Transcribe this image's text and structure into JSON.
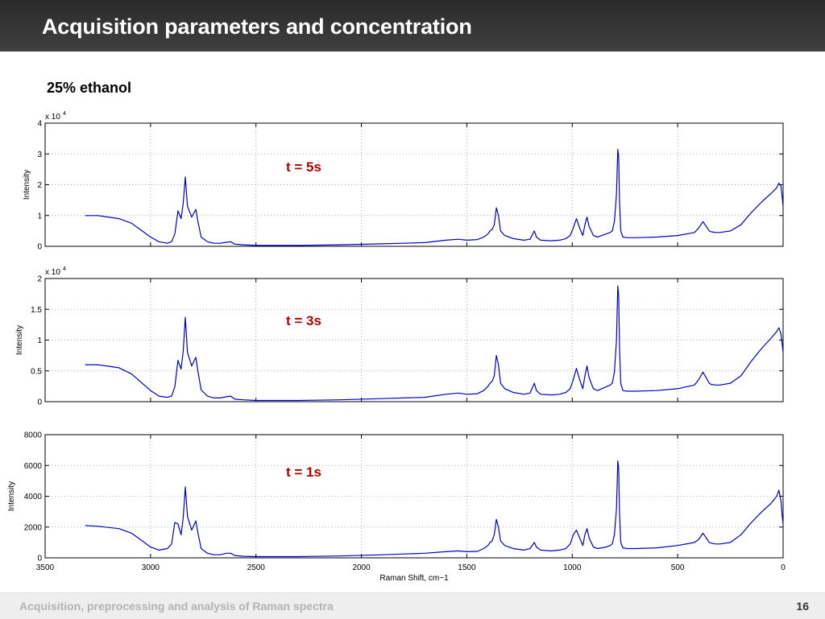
{
  "slide": {
    "title": "Acquisition parameters and concentration",
    "subtitle": "25% ethanol",
    "footer": "Acquisition, preprocessing and analysis of Raman spectra",
    "page_number": "16"
  },
  "colors": {
    "series": "#0000cc",
    "annotation": "#b00000",
    "header": "#333333"
  },
  "chart_data": [
    {
      "type": "line",
      "annotation": "t = 5s",
      "ylabel": "Intensity",
      "xlabel": "",
      "y_exponent_label": "x 10",
      "y_exponent": "4",
      "xlim": [
        3500,
        0
      ],
      "ylim": [
        0,
        40000
      ],
      "xticks": [
        3500,
        3000,
        2500,
        2000,
        1500,
        1000,
        500,
        0
      ],
      "yticks": [
        0,
        10000,
        20000,
        30000,
        40000
      ],
      "ytick_labels": [
        "0",
        "1",
        "2",
        "3",
        "4"
      ],
      "grid": true,
      "series": [
        {
          "x": [
            3310,
            3250,
            3150,
            3090,
            3050,
            3000,
            2960,
            2920,
            2900,
            2885,
            2870,
            2855,
            2845,
            2835,
            2825,
            2805,
            2785,
            2775,
            2760,
            2730,
            2700,
            2670,
            2640,
            2620,
            2600,
            2560,
            2500,
            2300,
            2100,
            1900,
            1700,
            1600,
            1540,
            1500,
            1450,
            1420,
            1400,
            1390,
            1380,
            1370,
            1360,
            1350,
            1340,
            1320,
            1300,
            1280,
            1230,
            1200,
            1180,
            1170,
            1150,
            1100,
            1060,
            1030,
            1010,
            995,
            980,
            965,
            950,
            940,
            930,
            920,
            900,
            880,
            860,
            840,
            820,
            810,
            800,
            790,
            784,
            780,
            776,
            770,
            760,
            740,
            700,
            600,
            500,
            420,
            400,
            380,
            365,
            350,
            340,
            320,
            300,
            250,
            200,
            150,
            100,
            60,
            30,
            20,
            10,
            5,
            0
          ],
          "values": [
            10000,
            10000,
            9000,
            7500,
            5500,
            3000,
            1500,
            1000,
            1500,
            4000,
            11500,
            9000,
            14000,
            22500,
            13000,
            9500,
            12000,
            8000,
            3000,
            1500,
            1000,
            1000,
            1300,
            1500,
            700,
            500,
            300,
            300,
            500,
            800,
            1200,
            2000,
            2300,
            2000,
            2200,
            3000,
            4000,
            5000,
            5500,
            7000,
            12500,
            10000,
            5000,
            3500,
            3000,
            2500,
            2000,
            2300,
            5000,
            3000,
            2000,
            1800,
            2000,
            2500,
            3500,
            6000,
            9000,
            6000,
            3500,
            7000,
            9500,
            6500,
            3500,
            3000,
            3500,
            4000,
            4500,
            5000,
            8000,
            17000,
            31500,
            29000,
            15000,
            5000,
            3000,
            2800,
            2800,
            3000,
            3500,
            4500,
            6000,
            8000,
            6500,
            5000,
            4700,
            4500,
            4500,
            5000,
            7000,
            11000,
            14500,
            17000,
            19000,
            20500,
            19500,
            16500,
            13000
          ]
        }
      ]
    },
    {
      "type": "line",
      "annotation": "t = 3s",
      "ylabel": "Intensity",
      "xlabel": "",
      "y_exponent_label": "x 10",
      "y_exponent": "4",
      "xlim": [
        3500,
        0
      ],
      "ylim": [
        0,
        20000
      ],
      "xticks": [
        3500,
        3000,
        2500,
        2000,
        1500,
        1000,
        500,
        0
      ],
      "yticks": [
        0,
        5000,
        10000,
        15000,
        20000
      ],
      "ytick_labels": [
        "0",
        "0.5",
        "1",
        "1.5",
        "2"
      ],
      "grid": true,
      "series": [
        {
          "x": [
            3310,
            3250,
            3150,
            3090,
            3050,
            3000,
            2960,
            2920,
            2900,
            2885,
            2870,
            2855,
            2845,
            2835,
            2825,
            2805,
            2785,
            2775,
            2760,
            2730,
            2700,
            2670,
            2640,
            2620,
            2600,
            2560,
            2500,
            2300,
            2100,
            1900,
            1700,
            1600,
            1540,
            1500,
            1450,
            1420,
            1400,
            1390,
            1380,
            1370,
            1360,
            1350,
            1340,
            1320,
            1300,
            1280,
            1230,
            1200,
            1180,
            1170,
            1150,
            1100,
            1060,
            1030,
            1010,
            995,
            980,
            965,
            950,
            940,
            930,
            920,
            900,
            880,
            860,
            840,
            820,
            810,
            800,
            790,
            784,
            780,
            776,
            770,
            760,
            740,
            700,
            600,
            500,
            420,
            400,
            380,
            365,
            350,
            340,
            320,
            300,
            250,
            200,
            150,
            100,
            60,
            30,
            20,
            10,
            5,
            0
          ],
          "values": [
            6000,
            6000,
            5500,
            4500,
            3300,
            1800,
            900,
            700,
            900,
            2400,
            6700,
            5300,
            8200,
            13700,
            8000,
            5800,
            7200,
            4900,
            1900,
            900,
            600,
            600,
            800,
            900,
            400,
            300,
            200,
            200,
            300,
            500,
            700,
            1200,
            1400,
            1200,
            1300,
            1800,
            2500,
            3000,
            3300,
            4200,
            7500,
            6000,
            3000,
            2100,
            1800,
            1500,
            1200,
            1400,
            3000,
            1800,
            1200,
            1100,
            1200,
            1500,
            2100,
            3600,
            5400,
            3600,
            2100,
            4200,
            5800,
            3900,
            2100,
            1800,
            2100,
            2400,
            2700,
            3000,
            4800,
            10000,
            18800,
            17200,
            9000,
            3000,
            1800,
            1700,
            1700,
            1800,
            2100,
            2700,
            3600,
            4800,
            3900,
            3000,
            2800,
            2700,
            2700,
            3000,
            4200,
            6600,
            8700,
            10200,
            11400,
            12000,
            11000,
            9500,
            8000
          ]
        }
      ]
    },
    {
      "type": "line",
      "annotation": "t = 1s",
      "ylabel": "Intensity",
      "xlabel": "Raman Shift, cm−1",
      "y_exponent_label": "",
      "y_exponent": "",
      "xlim": [
        3500,
        0
      ],
      "ylim": [
        0,
        8000
      ],
      "xticks": [
        3500,
        3000,
        2500,
        2000,
        1500,
        1000,
        500,
        0
      ],
      "yticks": [
        0,
        2000,
        4000,
        6000,
        8000
      ],
      "ytick_labels": [
        "0",
        "2000",
        "4000",
        "6000",
        "8000"
      ],
      "grid": true,
      "series": [
        {
          "x": [
            3310,
            3250,
            3150,
            3090,
            3050,
            3000,
            2960,
            2920,
            2900,
            2885,
            2870,
            2855,
            2845,
            2835,
            2825,
            2805,
            2785,
            2775,
            2760,
            2730,
            2700,
            2670,
            2640,
            2620,
            2600,
            2560,
            2500,
            2300,
            2100,
            1900,
            1700,
            1600,
            1540,
            1500,
            1450,
            1420,
            1400,
            1390,
            1380,
            1370,
            1360,
            1350,
            1340,
            1320,
            1300,
            1280,
            1230,
            1200,
            1180,
            1170,
            1150,
            1100,
            1060,
            1030,
            1010,
            995,
            980,
            965,
            950,
            940,
            930,
            920,
            900,
            880,
            860,
            840,
            820,
            810,
            800,
            790,
            784,
            780,
            776,
            770,
            760,
            740,
            700,
            600,
            500,
            420,
            400,
            380,
            365,
            350,
            340,
            320,
            300,
            250,
            200,
            150,
            100,
            60,
            30,
            20,
            10,
            5,
            0
          ],
          "values": [
            2100,
            2050,
            1900,
            1600,
            1200,
            700,
            500,
            600,
            900,
            2300,
            2200,
            1500,
            2600,
            4600,
            2700,
            1800,
            2400,
            1600,
            600,
            300,
            200,
            200,
            300,
            300,
            150,
            100,
            80,
            80,
            120,
            200,
            300,
            400,
            450,
            400,
            420,
            600,
            800,
            1000,
            1100,
            1500,
            2500,
            2000,
            1100,
            800,
            700,
            600,
            500,
            600,
            1000,
            700,
            500,
            450,
            500,
            600,
            900,
            1500,
            1800,
            1300,
            800,
            1500,
            1900,
            1300,
            700,
            600,
            650,
            700,
            800,
            900,
            1500,
            3200,
            6300,
            5800,
            3000,
            1000,
            650,
            600,
            600,
            650,
            800,
            1000,
            1200,
            1600,
            1300,
            1000,
            950,
            900,
            900,
            1000,
            1500,
            2300,
            3000,
            3500,
            4000,
            4400,
            3700,
            2800,
            2200
          ]
        }
      ]
    }
  ]
}
